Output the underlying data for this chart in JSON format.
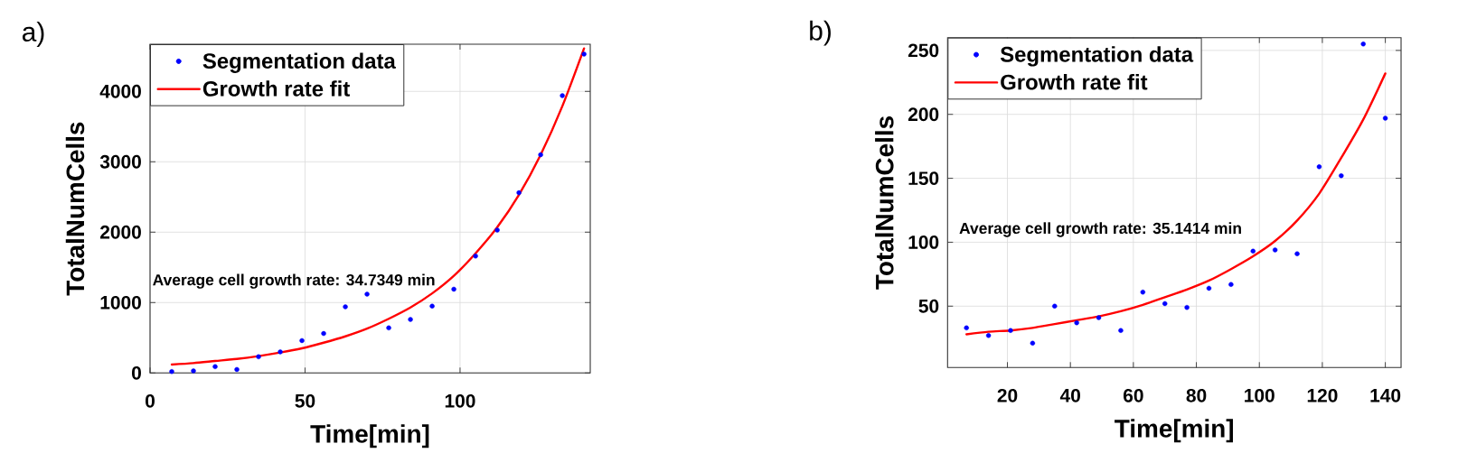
{
  "chart_data": [
    {
      "type": "scatter",
      "title": "a)",
      "xlabel": "Time[min]",
      "ylabel": "TotalNumCells",
      "annotations": [
        "Average cell growth rate: 34.7349 min"
      ],
      "xlim": [
        0,
        142
      ],
      "ylim": [
        0,
        4670
      ],
      "xticks": [
        0,
        50,
        100
      ],
      "yticks": [
        0,
        1000,
        2000,
        3000,
        4000
      ],
      "grid": true,
      "legend": "top left",
      "series": [
        {
          "name": "Segmentation data",
          "marker": "circle",
          "color": "#0000ff",
          "x": [
            7,
            14,
            21,
            28,
            35,
            42,
            49,
            56,
            63,
            70,
            77,
            84,
            91,
            98,
            105,
            112,
            119,
            126,
            133,
            140
          ],
          "values": [
            20,
            30,
            90,
            50,
            230,
            300,
            460,
            560,
            940,
            1120,
            640,
            760,
            950,
            1190,
            1660,
            2030,
            2560,
            3100,
            3940,
            4530
          ]
        },
        {
          "name": "Growth rate fit",
          "type": "line",
          "color": "#ff0000",
          "x": [
            7,
            14,
            21,
            28,
            35,
            42,
            49,
            56,
            63,
            70,
            77,
            84,
            91,
            98,
            105,
            112,
            119,
            126,
            133,
            140
          ],
          "values": [
            120,
            140,
            170,
            200,
            240,
            290,
            350,
            430,
            520,
            630,
            770,
            930,
            1130,
            1380,
            1700,
            2070,
            2530,
            3100,
            3790,
            4610
          ]
        }
      ]
    },
    {
      "type": "scatter",
      "title": "b)",
      "xlabel": "Time[min]",
      "ylabel": "TotalNumCells",
      "annotations": [
        "Average cell growth rate: 35.1414 min"
      ],
      "xlim": [
        1,
        145
      ],
      "ylim": [
        2,
        260
      ],
      "xticks": [
        20,
        40,
        60,
        80,
        100,
        120,
        140
      ],
      "yticks": [
        50,
        100,
        150,
        200,
        250
      ],
      "grid": true,
      "legend": "top left",
      "series": [
        {
          "name": "Segmentation data",
          "marker": "circle",
          "color": "#0000ff",
          "x": [
            7,
            14,
            21,
            28,
            35,
            42,
            49,
            56,
            63,
            70,
            77,
            84,
            91,
            98,
            105,
            112,
            119,
            126,
            133,
            140
          ],
          "values": [
            33,
            27,
            31,
            21,
            50,
            37,
            41,
            31,
            61,
            52,
            49,
            64,
            67,
            93,
            94,
            91,
            159,
            152,
            255,
            197
          ]
        },
        {
          "name": "Growth rate fit",
          "type": "line",
          "color": "#ff0000",
          "x": [
            7,
            14,
            21,
            28,
            35,
            42,
            49,
            56,
            63,
            70,
            77,
            84,
            91,
            98,
            105,
            112,
            119,
            126,
            133,
            140
          ],
          "values": [
            28,
            30,
            31,
            33,
            36,
            39,
            42,
            46,
            51,
            57,
            63,
            70,
            79,
            89,
            101,
            117,
            138,
            166,
            196,
            232
          ]
        }
      ]
    }
  ]
}
